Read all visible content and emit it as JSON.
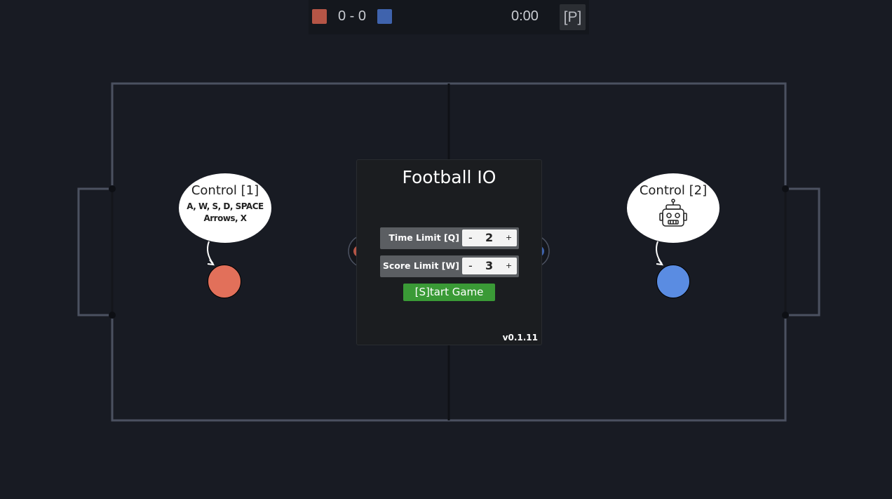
{
  "hud": {
    "red_color": "#b55546",
    "blue_color": "#3f63ad",
    "score": "0 - 0",
    "timer": "0:00",
    "pause_label": "[P]"
  },
  "players": {
    "p1": {
      "label": "Control [1]",
      "keys_line1": "A, W, S, D, SPACE",
      "keys_line2": "Arrows, X",
      "color": "#e2705a"
    },
    "p2": {
      "label": "Control [2]",
      "icon": "robot-icon",
      "color": "#5a8ce2"
    }
  },
  "menu": {
    "title": "Football IO",
    "time_limit": {
      "label": "Time Limit [Q]",
      "value": "2",
      "minus": "-",
      "plus": "+"
    },
    "score_limit": {
      "label": "Score Limit [W]",
      "value": "3",
      "minus": "-",
      "plus": "+"
    },
    "start_label": "[S]tart Game",
    "version": "v0.1.11"
  }
}
